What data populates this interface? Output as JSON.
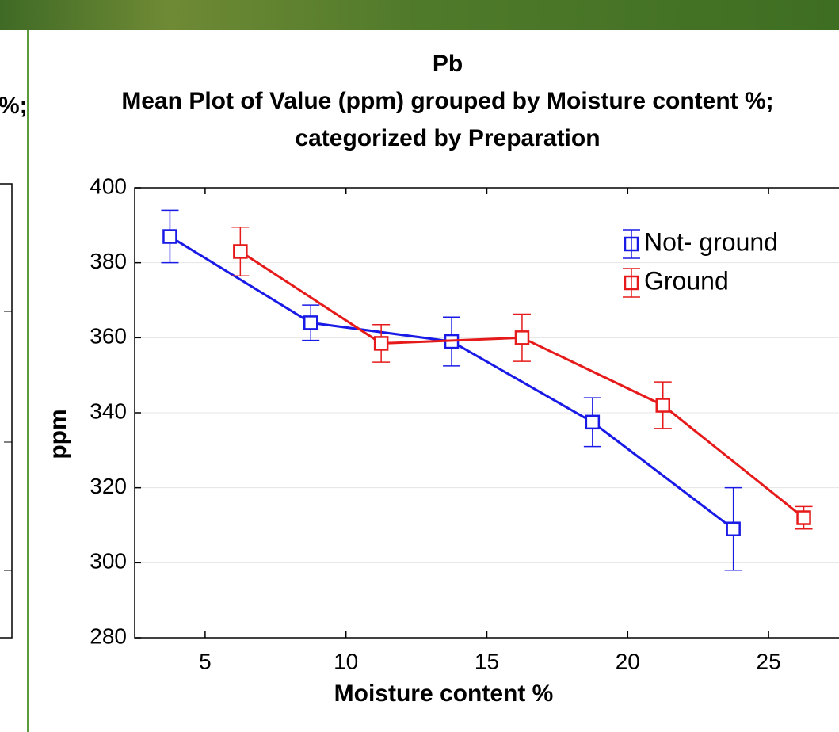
{
  "left_panel": {
    "title_fragment": "%;"
  },
  "chart_data": {
    "type": "line",
    "title": [
      "Pb",
      "Mean Plot of Value (ppm) grouped by  Moisture content %;",
      "categorized by Preparation"
    ],
    "x_label": "Moisture content %",
    "y_label": "ppm",
    "xlim": [
      2.5,
      27.5
    ],
    "xticks": [
      5,
      10,
      15,
      20,
      25
    ],
    "ylim": [
      280,
      400
    ],
    "yticks": [
      280,
      300,
      320,
      340,
      360,
      380,
      400
    ],
    "grid": true,
    "legend": "upper right",
    "series": [
      {
        "name": "Not- ground",
        "color": "#1a1ae6",
        "x": [
          3.75,
          8.75,
          13.75,
          18.75,
          23.75
        ],
        "values": [
          387,
          364,
          359,
          337.5,
          309
        ],
        "errors": [
          7,
          4.7,
          6.5,
          6.5,
          11
        ]
      },
      {
        "name": "Ground",
        "color": "#e61a1a",
        "x": [
          6.25,
          11.25,
          16.25,
          21.25,
          26.25
        ],
        "values": [
          383,
          358.5,
          360,
          342,
          312
        ],
        "errors": [
          6.5,
          5,
          6.3,
          6.2,
          3
        ]
      }
    ]
  }
}
